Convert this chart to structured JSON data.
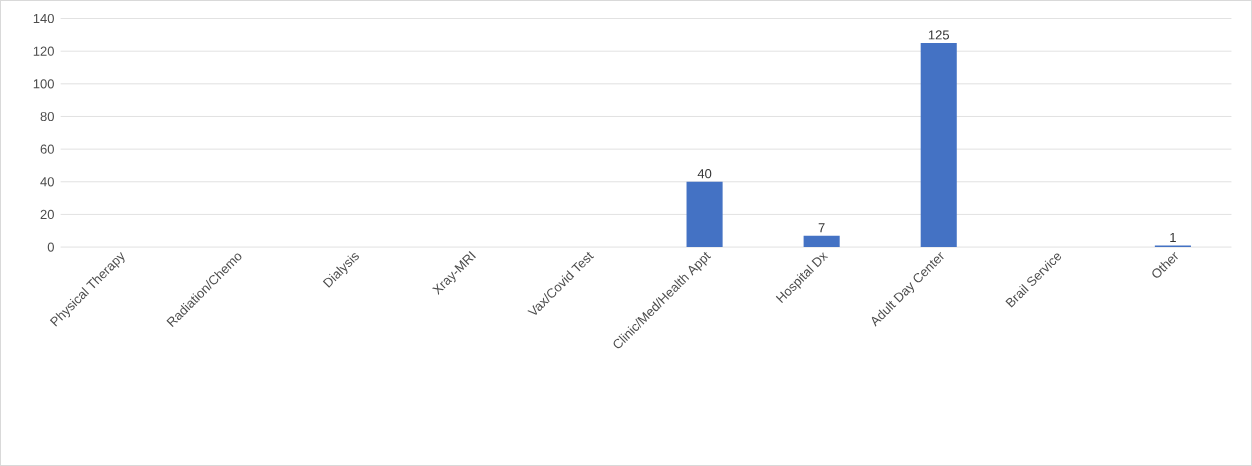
{
  "chart_data": {
    "type": "bar",
    "categories": [
      "Physical Therapy",
      "Radiation/Chemo",
      "Dialysis",
      "Xray-MRI",
      "Vax/Covid Test",
      "Clinic/Med/Health Appt",
      "Hospital Dx",
      "Adult Day Center",
      "Brail Service",
      "Other"
    ],
    "values": [
      0,
      0,
      0,
      0,
      0,
      40,
      7,
      125,
      0,
      1
    ],
    "value_labels": [
      null,
      null,
      null,
      null,
      null,
      "40",
      "7",
      "125",
      null,
      "1"
    ],
    "color": "#4472c4",
    "ylim": [
      0,
      140
    ],
    "yticks": [
      0,
      20,
      40,
      60,
      80,
      100,
      120,
      140
    ],
    "grid": "y"
  }
}
